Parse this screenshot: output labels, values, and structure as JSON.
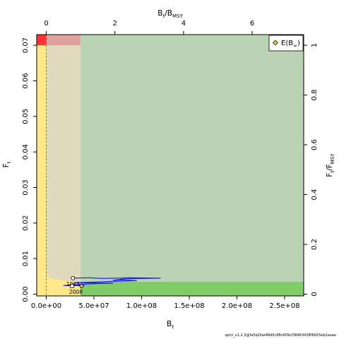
{
  "chart_data": {
    "type": "line",
    "xlabel_main": "B",
    "xlabel_main_sub": "t",
    "ylabel_main": "F",
    "ylabel_main_sub": "t",
    "xlabel_top": "B",
    "xlabel_top_sub": "t",
    "xlabel_top_slash": "/B",
    "xlabel_top_sub2": "MSY",
    "ylabel_right": "F",
    "ylabel_right_sub": "t",
    "ylabel_right_slash": "/F",
    "ylabel_right_sub2": "MSY",
    "xlim": [
      -10000000,
      270000000
    ],
    "ylim": [
      -0.0005,
      0.073
    ],
    "x_ticks": [
      0,
      50000000,
      100000000,
      150000000,
      200000000,
      250000000
    ],
    "x_tick_labels": [
      "0.0e+00",
      "5.0e+07",
      "1.0e+08",
      "1.5e+08",
      "2.0e+08",
      "2.5e+08"
    ],
    "y_ticks": [
      0,
      0.01,
      0.02,
      0.03,
      0.04,
      0.05,
      0.06,
      0.07
    ],
    "y_tick_labels": [
      "0.00",
      "0.01",
      "0.02",
      "0.03",
      "0.04",
      "0.05",
      "0.06",
      "0.07"
    ],
    "top_ticks": [
      0,
      2,
      4,
      6
    ],
    "top_tick_labels": [
      "0",
      "2",
      "4",
      "6"
    ],
    "right_ticks": [
      0,
      0.2,
      0.4,
      0.6,
      0.8,
      1
    ],
    "right_tick_labels": [
      "0",
      "0.2",
      "0.4",
      "0.6",
      "0.8",
      "1"
    ],
    "bmsy": 36000000,
    "fmsy": 0.07,
    "regions": {
      "red": "#ff3333",
      "pink": "#e0a0a0",
      "tan": "#e0d9bd",
      "yellow": "#ffe88a",
      "sage": "#bbd2b4",
      "green": "#80cc66"
    },
    "trajectory_color": "#1a1aee",
    "trajectory": [
      [
        28000000,
        0.0045
      ],
      [
        45000000,
        0.0046
      ],
      [
        60000000,
        0.0044
      ],
      [
        75000000,
        0.0045
      ],
      [
        87000000,
        0.0046
      ],
      [
        120000000,
        0.0045
      ],
      [
        100000000,
        0.0044
      ],
      [
        82000000,
        0.0043
      ],
      [
        70000000,
        0.0039
      ],
      [
        80000000,
        0.004
      ],
      [
        95000000,
        0.0038
      ],
      [
        68000000,
        0.0036
      ],
      [
        50000000,
        0.0034
      ],
      [
        30000000,
        0.0032
      ],
      [
        70000000,
        0.0031
      ],
      [
        55000000,
        0.003
      ],
      [
        40000000,
        0.0028
      ],
      [
        25000000,
        0.0026
      ],
      [
        18000000,
        0.0024
      ],
      [
        40000000,
        0.0025
      ],
      [
        37000000,
        0.0023
      ]
    ],
    "start_point": {
      "x": 28000000,
      "y": 0.0045,
      "label": "1963"
    },
    "end_point": {
      "x": 37000000,
      "y": 0.0023,
      "label": "2008"
    },
    "extra_point": {
      "x": 27000000,
      "y": 0.0023
    },
    "legend": {
      "label": "E(B",
      "label_sub": "∞",
      "label_close": ")",
      "placement": "top-right"
    }
  },
  "footer": "spict_v1.2.3@fa5b2fae48d0c88c609cf38463438f6b55eb2eaae"
}
